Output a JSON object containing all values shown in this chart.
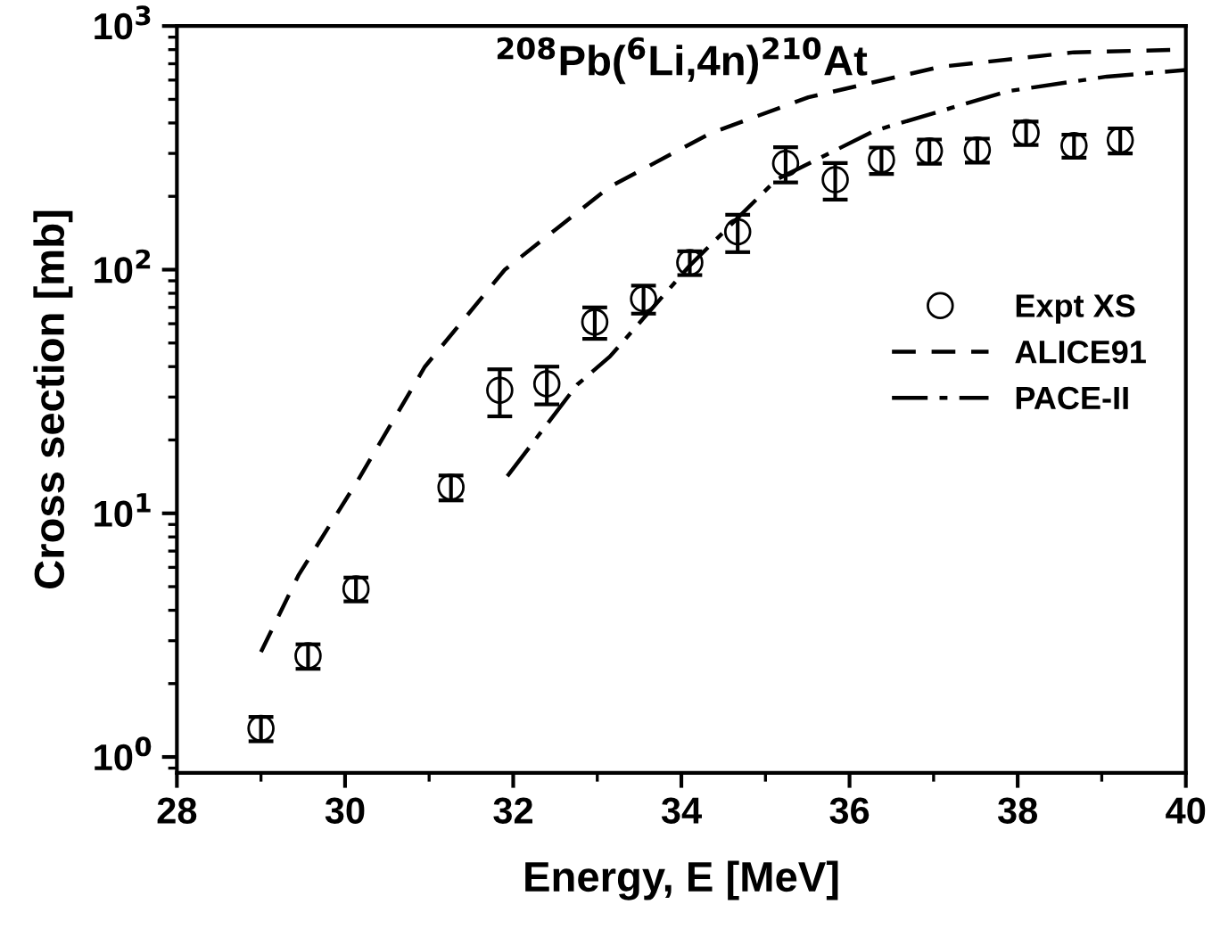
{
  "chart_data": {
    "type": "scatter",
    "title": "$^{208}$Pb($^{6}$Li,4n)$^{210}$At",
    "xlabel": "Energy, E [MeV]",
    "ylabel": "Cross section [mb]",
    "log": "y",
    "xlim": [
      28,
      40
    ],
    "ylim": [
      0.86,
      1000
    ],
    "xticks": [
      28,
      30,
      32,
      34,
      36,
      38,
      40
    ],
    "yticks": [
      {
        "value": 1,
        "label": "10$^{0}$"
      },
      {
        "value": 10,
        "label": "10$^{1}$"
      },
      {
        "value": 100,
        "label": "10$^{2}$"
      },
      {
        "value": 1000,
        "label": "10$^{3}$"
      }
    ],
    "grid": false,
    "legend": "right",
    "series": [
      {
        "name": "Expt XS",
        "marker": "circle",
        "color": "#000000",
        "x": [
          29.0,
          29.56,
          30.13,
          31.26,
          31.84,
          32.4,
          32.97,
          33.55,
          34.1,
          34.67,
          35.24,
          35.83,
          36.38,
          36.95,
          37.52,
          38.1,
          38.67,
          39.22
        ],
        "values": [
          1.31,
          2.6,
          4.9,
          12.8,
          32,
          34,
          61,
          76,
          107,
          143,
          273,
          234,
          282,
          307,
          310,
          365,
          323,
          340
        ],
        "errors": [
          0.15,
          0.3,
          0.55,
          1.5,
          7,
          6,
          9,
          10,
          12,
          25,
          45,
          40,
          35,
          35,
          35,
          40,
          35,
          40
        ]
      },
      {
        "name": "ALICE91",
        "type": "line",
        "line_style": "dashed",
        "color": "#000000",
        "x": [
          29.0,
          29.45,
          30.16,
          30.95,
          31.9,
          33.15,
          34.34,
          35.51,
          37.08,
          38.67,
          40.0
        ],
        "values": [
          2.7,
          5.6,
          13.8,
          40,
          100,
          219,
          362,
          510,
          680,
          780,
          800
        ]
      },
      {
        "name": "PACE-II",
        "type": "line",
        "line_style": "dashdot",
        "color": "#000000",
        "x": [
          31.93,
          32.76,
          33.15,
          34.1,
          35.13,
          36.3,
          37.88,
          39.06,
          40.0
        ],
        "values": [
          14.2,
          33.7,
          44,
          104,
          234,
          372,
          540,
          620,
          660
        ]
      }
    ]
  }
}
